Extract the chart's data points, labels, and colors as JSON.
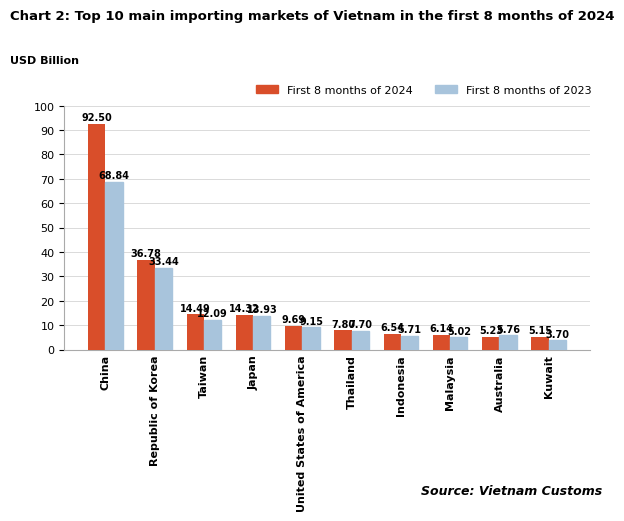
{
  "title": "Chart 2: Top 10 main importing markets of Vietnam in the first 8 months of 2024",
  "ylabel": "USD Billion",
  "categories": [
    "China",
    "Republic of Korea",
    "Taiwan",
    "Japan",
    "United States of America",
    "Thailand",
    "Indonesia",
    "Malaysia",
    "Australia",
    "Kuwait"
  ],
  "values_2024": [
    92.5,
    36.78,
    14.49,
    14.32,
    9.69,
    7.8,
    6.54,
    6.14,
    5.23,
    5.15
  ],
  "values_2023": [
    68.84,
    33.44,
    12.09,
    13.93,
    9.15,
    7.7,
    5.71,
    5.02,
    5.76,
    3.7
  ],
  "color_2024": "#D94E2A",
  "color_2023": "#A8C4DC",
  "legend_2024": "First 8 months of 2024",
  "legend_2023": "First 8 months of 2023",
  "ylim": [
    0,
    100
  ],
  "yticks": [
    0,
    10,
    20,
    30,
    40,
    50,
    60,
    70,
    80,
    90,
    100
  ],
  "source_text": "Source: Vietnam Customs",
  "bar_width": 0.35,
  "hatch_2023": "///",
  "background_color": "#FFFFFF",
  "title_fontsize": 9.5,
  "label_fontsize": 7,
  "axis_fontsize": 8,
  "legend_fontsize": 8
}
